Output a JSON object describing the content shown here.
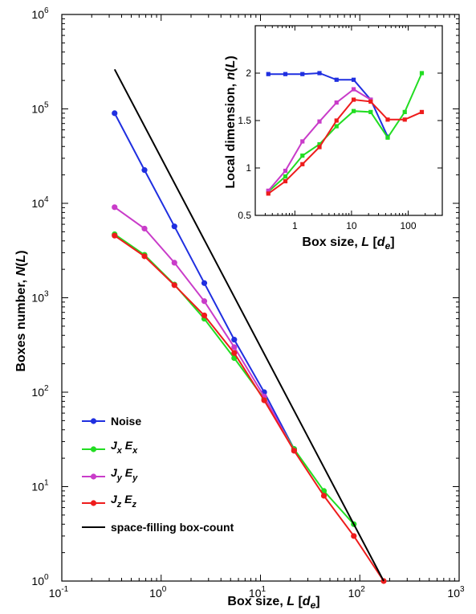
{
  "chart_data": [
    {
      "type": "line",
      "xscale": "log",
      "yscale": "log",
      "xlim": [
        0.1,
        1000
      ],
      "ylim": [
        1,
        1000000
      ],
      "xlabel": "Box size, L [d_e]",
      "ylabel": "Boxes number, N(L)",
      "xticks": [
        {
          "value": 0.1,
          "base": "10",
          "exp": "-1"
        },
        {
          "value": 1,
          "base": "10",
          "exp": "0"
        },
        {
          "value": 10,
          "base": "10",
          "exp": "1"
        },
        {
          "value": 100,
          "base": "10",
          "exp": "2"
        },
        {
          "value": 1000,
          "base": "10",
          "exp": "3"
        }
      ],
      "yticks": [
        {
          "value": 1,
          "base": "10",
          "exp": "0"
        },
        {
          "value": 10,
          "base": "10",
          "exp": "1"
        },
        {
          "value": 100,
          "base": "10",
          "exp": "2"
        },
        {
          "value": 1000,
          "base": "10",
          "exp": "3"
        },
        {
          "value": 10000,
          "base": "10",
          "exp": "4"
        },
        {
          "value": 100000,
          "base": "10",
          "exp": "5"
        },
        {
          "value": 1000000,
          "base": "10",
          "exp": "6"
        }
      ],
      "legend_position": "bottom-left",
      "series": [
        {
          "key": "noise",
          "name": "Noise",
          "color": "#1f2fe0",
          "marker": "circle",
          "x": [
            0.34,
            0.68,
            1.36,
            2.72,
            5.44,
            10.9,
            21.8
          ],
          "y": [
            90000,
            22500,
            5700,
            1430,
            360,
            100,
            25
          ]
        },
        {
          "key": "jxex",
          "name": "JxEx",
          "color": "#22dd22",
          "marker": "circle",
          "x": [
            0.34,
            0.68,
            1.36,
            2.72,
            5.44,
            10.9,
            21.8,
            43.5,
            87
          ],
          "y": [
            4700,
            2850,
            1380,
            600,
            230,
            85,
            25,
            9,
            4
          ]
        },
        {
          "key": "jyey",
          "name": "JyEy",
          "color": "#c93cc9",
          "marker": "circle",
          "x": [
            0.34,
            0.68,
            1.36,
            2.72,
            5.44,
            10.9,
            21.8
          ],
          "y": [
            9100,
            5400,
            2350,
            920,
            300,
            90,
            24
          ]
        },
        {
          "key": "jzez",
          "name": "JzEz",
          "color": "#ee1c1c",
          "marker": "circle",
          "x": [
            0.34,
            0.68,
            1.36,
            2.72,
            5.44,
            10.9,
            21.8,
            43.5,
            87,
            174
          ],
          "y": [
            4550,
            2750,
            1360,
            650,
            260,
            82,
            24,
            8,
            3,
            1
          ]
        },
        {
          "key": "space",
          "name": "space-filling box-count",
          "color": "#000000",
          "marker": "none",
          "x": [
            0.34,
            174
          ],
          "y": [
            262000,
            1
          ]
        }
      ]
    },
    {
      "type": "line",
      "xscale": "log",
      "yscale": "linear",
      "xlim": [
        0.2,
        400
      ],
      "ylim": [
        0.5,
        2.5
      ],
      "xlabel": "Box size, L [d_e]",
      "ylabel": "Local dimension, n(L)",
      "xticks": [
        {
          "value": 1,
          "label": "1"
        },
        {
          "value": 10,
          "label": "10"
        },
        {
          "value": 100,
          "label": "100"
        }
      ],
      "yticks": [
        {
          "value": 0.5,
          "label": "0.5"
        },
        {
          "value": 1,
          "label": "1"
        },
        {
          "value": 1.5,
          "label": "1.5"
        },
        {
          "value": 2,
          "label": "2"
        }
      ],
      "series": [
        {
          "key": "noise",
          "color": "#1f2fe0",
          "marker": "square",
          "x": [
            0.34,
            0.68,
            1.36,
            2.72,
            5.44,
            10.9,
            21.8,
            43.5
          ],
          "y": [
            1.99,
            1.99,
            1.99,
            2.0,
            1.93,
            1.93,
            1.72,
            1.33
          ]
        },
        {
          "key": "jxex",
          "color": "#22dd22",
          "marker": "square",
          "x": [
            0.34,
            0.68,
            1.36,
            2.72,
            5.44,
            10.9,
            21.8,
            43.5,
            87,
            174
          ],
          "y": [
            0.75,
            0.91,
            1.13,
            1.25,
            1.44,
            1.6,
            1.59,
            1.32,
            1.59,
            2.0
          ]
        },
        {
          "key": "jyey",
          "color": "#c93cc9",
          "marker": "square",
          "x": [
            0.34,
            0.68,
            1.36,
            2.72,
            5.44,
            10.9,
            21.8
          ],
          "y": [
            0.76,
            0.97,
            1.28,
            1.49,
            1.69,
            1.83,
            1.72
          ]
        },
        {
          "key": "jzez",
          "color": "#ee1c1c",
          "marker": "square",
          "x": [
            0.34,
            0.68,
            1.36,
            2.72,
            5.44,
            10.9,
            21.8,
            43.5,
            87,
            174
          ],
          "y": [
            0.73,
            0.86,
            1.04,
            1.22,
            1.5,
            1.72,
            1.7,
            1.51,
            1.51,
            1.59
          ]
        }
      ]
    }
  ]
}
